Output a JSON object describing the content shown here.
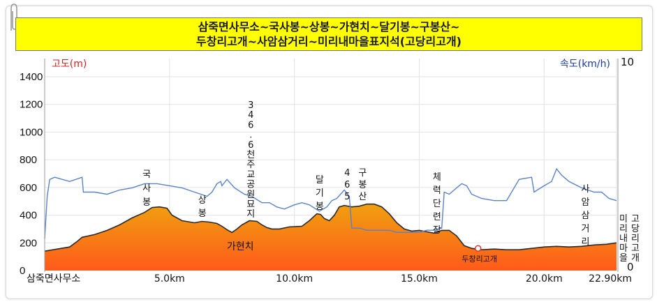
{
  "title_lines": [
    "삼죽면사무소~국사봉~상봉~가현치~달기봉~구봉산~",
    "두창리고개~사암삼거리~미리내마을표지석(고당리고개)"
  ],
  "chart_data": {
    "type": "area",
    "title": "삼죽면사무소~국사봉~상봉~가현치~달기봉~구봉산~두창리고개~사암삼거리~미리내마을표지석(고당리고개)",
    "y_left_label": "고도(m)",
    "y_right_label": "속도(km/h)",
    "y_left_ticks": [
      "0",
      "200",
      "400",
      "600",
      "800",
      "1000",
      "1200",
      "1400"
    ],
    "y_left_lim": [
      0,
      1500
    ],
    "y_right_ticks": [
      "10",
      "0"
    ],
    "y_right_lim": [
      0,
      10
    ],
    "x_lim": [
      0,
      22.9
    ],
    "x_tick_labels": [
      {
        "x": 0,
        "label": "삼죽면사무소"
      },
      {
        "x": 5,
        "label": "5.0km"
      },
      {
        "x": 10,
        "label": "10.0km"
      },
      {
        "x": 15,
        "label": "15.0km"
      },
      {
        "x": 20,
        "label": "20.0km"
      },
      {
        "x": 22.9,
        "label": "22.90km"
      }
    ],
    "elevation": {
      "x": [
        0,
        0.5,
        1,
        1.3,
        1.5,
        2,
        2.5,
        3,
        3.5,
        4,
        4.3,
        4.6,
        4.9,
        5.1,
        5.5,
        6,
        6.3,
        6.6,
        6.9,
        7.1,
        7.3,
        7.5,
        7.7,
        7.9,
        8.2,
        8.5,
        8.7,
        8.9,
        9.1,
        9.4,
        9.8,
        10.3,
        10.6,
        10.9,
        11.05,
        11.2,
        11.4,
        11.6,
        11.8,
        12.0,
        12.3,
        12.6,
        12.9,
        13.2,
        13.5,
        13.8,
        14.1,
        14.4,
        14.7,
        15.0,
        15.3,
        15.6,
        15.9,
        16.2,
        16.5,
        16.8,
        17.1,
        17.5,
        18,
        18.5,
        19,
        19.5,
        20,
        20.5,
        21,
        21.5,
        22,
        22.5,
        22.9
      ],
      "y": [
        140,
        155,
        170,
        210,
        240,
        260,
        290,
        330,
        380,
        420,
        455,
        460,
        450,
        400,
        360,
        345,
        355,
        350,
        340,
        320,
        295,
        275,
        300,
        330,
        360,
        355,
        330,
        310,
        300,
        300,
        315,
        320,
        360,
        410,
        405,
        375,
        360,
        400,
        460,
        470,
        460,
        465,
        480,
        480,
        460,
        410,
        345,
        300,
        285,
        290,
        280,
        270,
        290,
        290,
        250,
        180,
        160,
        150,
        155,
        150,
        150,
        160,
        170,
        175,
        170,
        175,
        185,
        190,
        200
      ]
    },
    "speed": {
      "x": [
        0,
        0.1,
        0.2,
        0.4,
        1,
        1.5,
        1.55,
        2,
        2.5,
        3,
        3.5,
        4,
        4.5,
        5,
        5.5,
        6,
        6.5,
        6.7,
        6.9,
        7.05,
        7.1,
        7.3,
        7.6,
        8,
        8.3,
        8.7,
        9,
        9.3,
        9.6,
        10,
        10.3,
        10.6,
        11.0,
        11.3,
        11.5,
        11.7,
        12.0,
        12.2,
        12.3,
        12.6,
        12.9,
        13.2,
        13.5,
        13.8,
        14.1,
        14.4,
        14.7,
        15.0,
        15.3,
        15.6,
        15.9,
        16.0,
        16.2,
        16.5,
        16.7,
        16.9,
        17.1,
        17.5,
        18,
        18.5,
        18.6,
        19,
        19.5,
        19.6,
        20,
        20.3,
        20.5,
        20.7,
        21,
        21.5,
        22,
        22.3,
        22.6,
        22.9
      ],
      "y": [
        1.5,
        3.5,
        4.3,
        4.4,
        4.2,
        4.4,
        3.7,
        3.7,
        3.6,
        3.8,
        3.9,
        4.1,
        4.1,
        4.0,
        3.9,
        3.7,
        3.5,
        3.7,
        4.1,
        4.2,
        4.0,
        4.3,
        3.9,
        3.6,
        3.5,
        3.2,
        3.2,
        3.0,
        2.9,
        3.1,
        3.2,
        3.1,
        2.8,
        3.0,
        3.3,
        3.4,
        3.8,
        3.5,
        2.0,
        2.0,
        1.9,
        1.9,
        1.9,
        1.9,
        1.8,
        1.8,
        1.8,
        1.8,
        1.9,
        1.9,
        2.0,
        3.7,
        3.6,
        3.9,
        4.1,
        4.0,
        3.6,
        3.4,
        3.3,
        3.3,
        3.5,
        4.3,
        4.4,
        3.7,
        4.0,
        4.2,
        4.8,
        4.5,
        4.2,
        3.9,
        3.7,
        3.7,
        3.4,
        3.3
      ]
    },
    "waypoints": [
      {
        "x": 4.0,
        "label": "국사봉"
      },
      {
        "x": 6.2,
        "label": "상봉"
      },
      {
        "x": 7.5,
        "label": "가현치"
      },
      {
        "x": 8.2,
        "label": "346.6천주교공원묘지"
      },
      {
        "x": 10.9,
        "label": "달기봉"
      },
      {
        "x": 12.2,
        "label": "465"
      },
      {
        "x": 12.9,
        "label": "구봉산"
      },
      {
        "x": 15.6,
        "label": "체력단련장"
      },
      {
        "x": 17.3,
        "label": "두창리고개"
      },
      {
        "x": 21.6,
        "label": "사암삼거리"
      },
      {
        "x": 22.45,
        "label": "미리내마을"
      },
      {
        "x": 22.85,
        "label": "고당리고개"
      }
    ],
    "marker": {
      "x": 17.3,
      "y": 150
    },
    "colors": {
      "elevation_top": "#f0a010",
      "elevation_bottom": "#ff5a1a",
      "elevation_stroke": "#2a2a2a",
      "speed_line": "#5a82c8",
      "left_label": "#cc2222",
      "right_label": "#1c3c9c",
      "grid": "#e2e2e2",
      "marker": "#e03030"
    },
    "grid": true
  }
}
